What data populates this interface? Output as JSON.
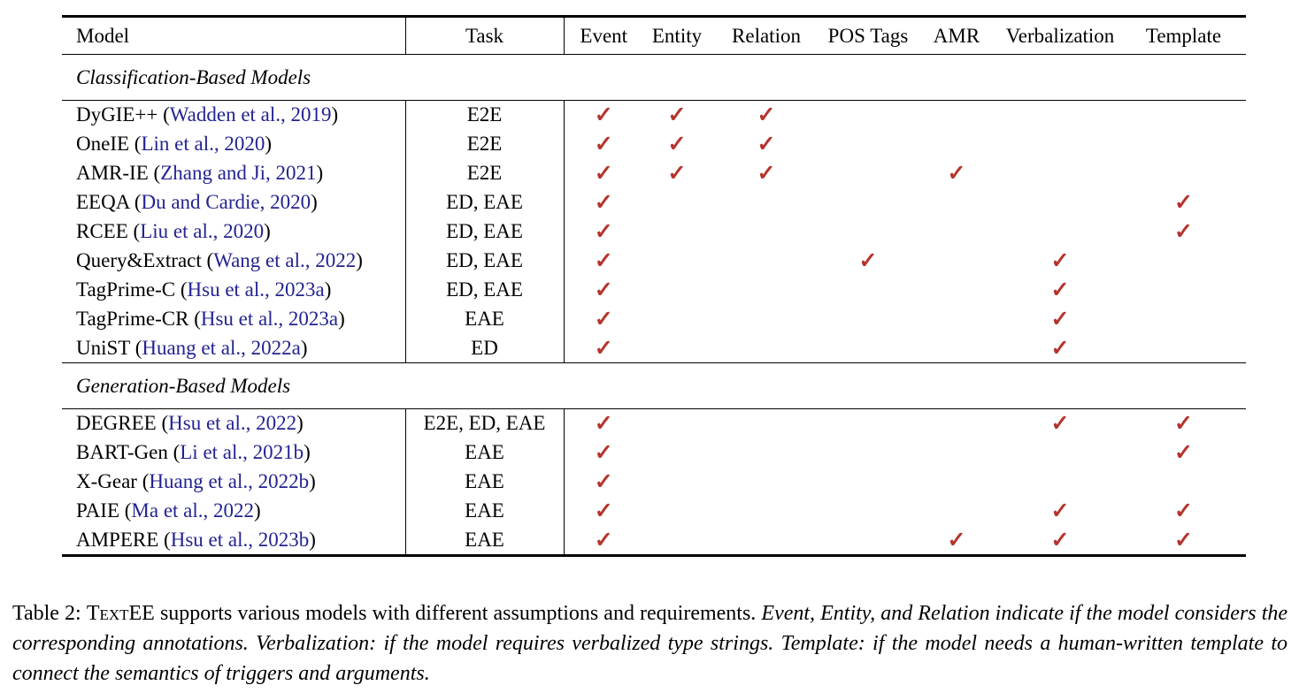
{
  "colors": {
    "check": "#b5342e",
    "citation_link": "#232391",
    "rule": "#000000",
    "background": "#ffffff"
  },
  "table": {
    "columns": [
      "Model",
      "Task",
      "Event",
      "Entity",
      "Relation",
      "POS Tags",
      "AMR",
      "Verbalization",
      "Template"
    ],
    "check_icon": "✓",
    "sections": [
      {
        "title": "Classification-Based Models",
        "rows": [
          {
            "model": "DyGIE++",
            "cite": "Wadden et al., 2019",
            "task": "E2E",
            "checks": [
              1,
              1,
              1,
              0,
              0,
              0,
              0
            ]
          },
          {
            "model": "OneIE",
            "cite": "Lin et al., 2020",
            "task": "E2E",
            "checks": [
              1,
              1,
              1,
              0,
              0,
              0,
              0
            ]
          },
          {
            "model": "AMR-IE",
            "cite": "Zhang and Ji, 2021",
            "task": "E2E",
            "checks": [
              1,
              1,
              1,
              0,
              1,
              0,
              0
            ]
          },
          {
            "model": "EEQA",
            "cite": "Du and Cardie, 2020",
            "task": "ED, EAE",
            "checks": [
              1,
              0,
              0,
              0,
              0,
              0,
              1
            ]
          },
          {
            "model": "RCEE",
            "cite": "Liu et al., 2020",
            "task": "ED, EAE",
            "checks": [
              1,
              0,
              0,
              0,
              0,
              0,
              1
            ]
          },
          {
            "model": "Query&Extract",
            "cite": "Wang et al., 2022",
            "task": "ED, EAE",
            "checks": [
              1,
              0,
              0,
              1,
              0,
              1,
              0
            ]
          },
          {
            "model": "TagPrime-C",
            "cite": "Hsu et al., 2023a",
            "task": "ED, EAE",
            "checks": [
              1,
              0,
              0,
              0,
              0,
              1,
              0
            ]
          },
          {
            "model": "TagPrime-CR",
            "cite": "Hsu et al., 2023a",
            "task": "EAE",
            "checks": [
              1,
              0,
              0,
              0,
              0,
              1,
              0
            ]
          },
          {
            "model": "UniST",
            "cite": "Huang et al., 2022a",
            "task": "ED",
            "checks": [
              1,
              0,
              0,
              0,
              0,
              1,
              0
            ]
          }
        ]
      },
      {
        "title": "Generation-Based Models",
        "rows": [
          {
            "model": "DEGREE",
            "cite": "Hsu et al., 2022",
            "task": "E2E, ED, EAE",
            "checks": [
              1,
              0,
              0,
              0,
              0,
              1,
              1
            ]
          },
          {
            "model": "BART-Gen",
            "cite": "Li et al., 2021b",
            "task": "EAE",
            "checks": [
              1,
              0,
              0,
              0,
              0,
              0,
              1
            ]
          },
          {
            "model": "X-Gear",
            "cite": "Huang et al., 2022b",
            "task": "EAE",
            "checks": [
              1,
              0,
              0,
              0,
              0,
              0,
              0
            ]
          },
          {
            "model": "PAIE",
            "cite": "Ma et al., 2022",
            "task": "EAE",
            "checks": [
              1,
              0,
              0,
              0,
              0,
              1,
              1
            ]
          },
          {
            "model": "AMPERE",
            "cite": "Hsu et al., 2023b",
            "task": "EAE",
            "checks": [
              1,
              0,
              0,
              0,
              1,
              1,
              1
            ]
          }
        ]
      }
    ]
  },
  "caption": {
    "label": "Table 2:",
    "brand": "TextEE",
    "roman_rest": "supports various models with different assumptions and requirements.",
    "italic": "Event, Entity, and Relation indicate if the model considers the corresponding annotations. Verbalization: if the model requires verbalized type strings. Template: if the model needs a human-written template to connect the semantics of triggers and arguments."
  }
}
